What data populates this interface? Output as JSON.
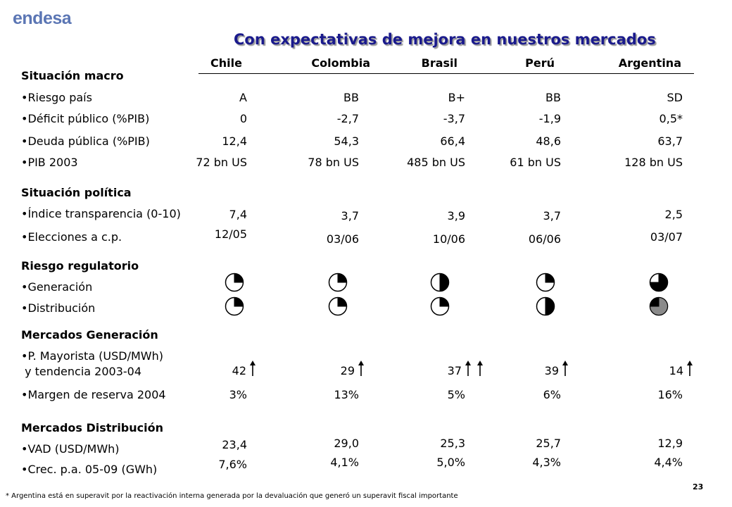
{
  "logo": "endesa",
  "title": "Con expectativas de mejora en nuestros mercados",
  "columns": [
    "Chile",
    "Colombia",
    "Brasil",
    "Perú",
    "Argentina"
  ],
  "sections": {
    "macro": "Situación macro",
    "politica": "Situación política",
    "regulatorio": "Riesgo regulatorio",
    "generacion": "Mercados Generación",
    "distribucion": "Mercados Distribución"
  },
  "labels": {
    "riesgo_pais": "•Riesgo país",
    "deficit": "•Déficit público (%PIB)",
    "deuda": "•Deuda pública (%PIB)",
    "pib": "•PIB 2003",
    "transparencia": "•Índice transparencia (0-10)",
    "elecciones": "•Elecciones a c.p.",
    "gen": "•Generación",
    "dist": "•Distribución",
    "mayorista_1": "•P. Mayorista (USD/MWh)",
    "mayorista_2": " y tendencia 2003-04",
    "reserva": "•Margen de reserva 2004",
    "vad": "•VAD (USD/MWh)",
    "crec": "•Crec. p.a. 05-09 (GWh)"
  },
  "values": {
    "riesgo_pais": [
      "A",
      "BB",
      "B+",
      "BB",
      "SD"
    ],
    "deficit": [
      "0",
      "-2,7",
      "-3,7",
      "-1,9",
      "0,5*"
    ],
    "deuda": [
      "12,4",
      "54,3",
      "66,4",
      "48,6",
      "63,7"
    ],
    "pib": [
      "72 bn US",
      "78 bn US",
      "485 bn US",
      "61 bn US",
      "128 bn US"
    ],
    "transparencia": [
      "7,4",
      "3,7",
      "3,9",
      "3,7",
      "2,5"
    ],
    "elecciones": [
      "12/05",
      "03/06",
      "10/06",
      "06/06",
      "03/07"
    ],
    "mayorista": [
      "42",
      "29",
      "37",
      "39",
      "14"
    ],
    "reserva": [
      "3%",
      "13%",
      "5%",
      "6%",
      "16%"
    ],
    "vad": [
      "23,4",
      "29,0",
      "25,3",
      "25,7",
      "12,9"
    ],
    "crec": [
      "7,6%",
      "4,1%",
      "5,0%",
      "4,3%",
      "4,4%"
    ]
  },
  "risk_levels": {
    "generacion": [
      0.25,
      0.25,
      0.5,
      0.25,
      0.75
    ],
    "distribucion": [
      0.25,
      0.25,
      0.25,
      0.5,
      0.75
    ]
  },
  "trend_arrows": [
    1,
    1,
    2,
    1,
    1
  ],
  "colors": {
    "title": "#1a1a8c",
    "logo": "#5b76b4",
    "pie_fill": "#000000",
    "pie_gray": "#8a8a8a"
  },
  "footnote": "* Argentina está en superavit por la reactivación interna generada por la devaluación que generó un superavit fiscal importante",
  "page_number": "23"
}
